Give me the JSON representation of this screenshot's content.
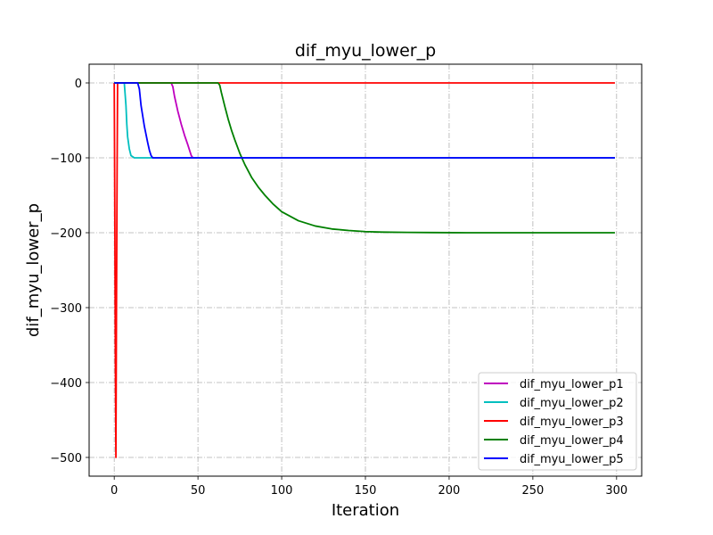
{
  "chart_data": {
    "type": "line",
    "title": "dif_myu_lower_p",
    "xlabel": "Iteration",
    "ylabel": "dif_myu_lower_p",
    "xlim": [
      -15,
      315
    ],
    "ylim": [
      -525,
      25
    ],
    "xticks": [
      0,
      50,
      100,
      150,
      200,
      250,
      300
    ],
    "yticks": [
      0,
      -100,
      -200,
      -300,
      -400,
      -500
    ],
    "grid": true,
    "legend_position": "lower-right",
    "series": [
      {
        "name": "dif_myu_lower_p1",
        "color": "#bf00bf",
        "x": [
          0,
          34,
          35,
          36,
          38,
          40,
          42,
          44,
          46,
          47,
          60,
          100,
          150,
          200,
          250,
          299
        ],
        "y": [
          0,
          0,
          -5,
          -18,
          -38,
          -55,
          -70,
          -83,
          -97,
          -100,
          -100,
          -100,
          -100,
          -100,
          -100,
          -100
        ]
      },
      {
        "name": "dif_myu_lower_p2",
        "color": "#00bfbf",
        "x": [
          0,
          6,
          7,
          7.5,
          8,
          9,
          10,
          12,
          20,
          100,
          200,
          299
        ],
        "y": [
          0,
          0,
          -30,
          -55,
          -72,
          -88,
          -97,
          -100,
          -100,
          -100,
          -100,
          -100
        ]
      },
      {
        "name": "dif_myu_lower_p3",
        "color": "#ff0000",
        "x": [
          0,
          0.3,
          0.7,
          1,
          1.3,
          1.7,
          2,
          100,
          200,
          299
        ],
        "y": [
          0,
          -150,
          -380,
          -500,
          -320,
          -120,
          0,
          0,
          0,
          0
        ]
      },
      {
        "name": "dif_myu_lower_p4",
        "color": "#008000",
        "x": [
          0,
          62,
          63,
          64,
          66,
          68,
          70,
          72,
          75,
          78,
          82,
          86,
          90,
          95,
          100,
          110,
          120,
          130,
          140,
          150,
          160,
          175,
          190,
          210,
          240,
          270,
          299
        ],
        "y": [
          0,
          0,
          -3,
          -13,
          -31,
          -48,
          -63,
          -76,
          -94,
          -109,
          -126,
          -139,
          -150,
          -162,
          -172,
          -184,
          -191,
          -195,
          -197,
          -198.5,
          -199.2,
          -199.6,
          -199.8,
          -200,
          -200,
          -200,
          -200
        ]
      },
      {
        "name": "dif_myu_lower_p5",
        "color": "#0000ff",
        "x": [
          0,
          14,
          15,
          16,
          18,
          20,
          21,
          22,
          23,
          40,
          100,
          200,
          299
        ],
        "y": [
          0,
          0,
          -8,
          -30,
          -58,
          -80,
          -90,
          -97,
          -100,
          -100,
          -100,
          -100,
          -100
        ]
      }
    ]
  }
}
